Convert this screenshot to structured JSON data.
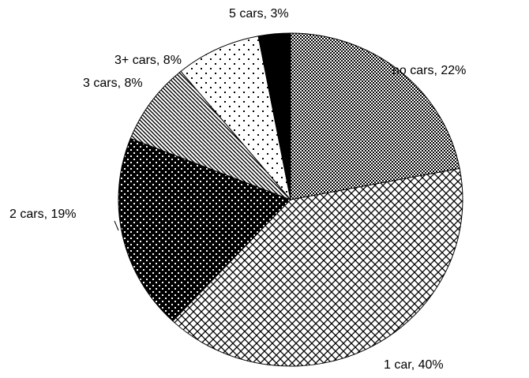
{
  "chart_data": {
    "type": "pie",
    "values": [
      22,
      40,
      19,
      8,
      8,
      3
    ],
    "value_labels": [
      "no cars, 22%",
      "1 car, 40%",
      "2 cars, 19%",
      "3 cars, 8%",
      "3+ cars, 8%",
      "5 cars, 3%"
    ],
    "patterns": [
      "checker",
      "diamond",
      "dots-on-black",
      "diagonal",
      "dots",
      "solid"
    ],
    "start_angle": 0,
    "direction": "clockwise"
  }
}
